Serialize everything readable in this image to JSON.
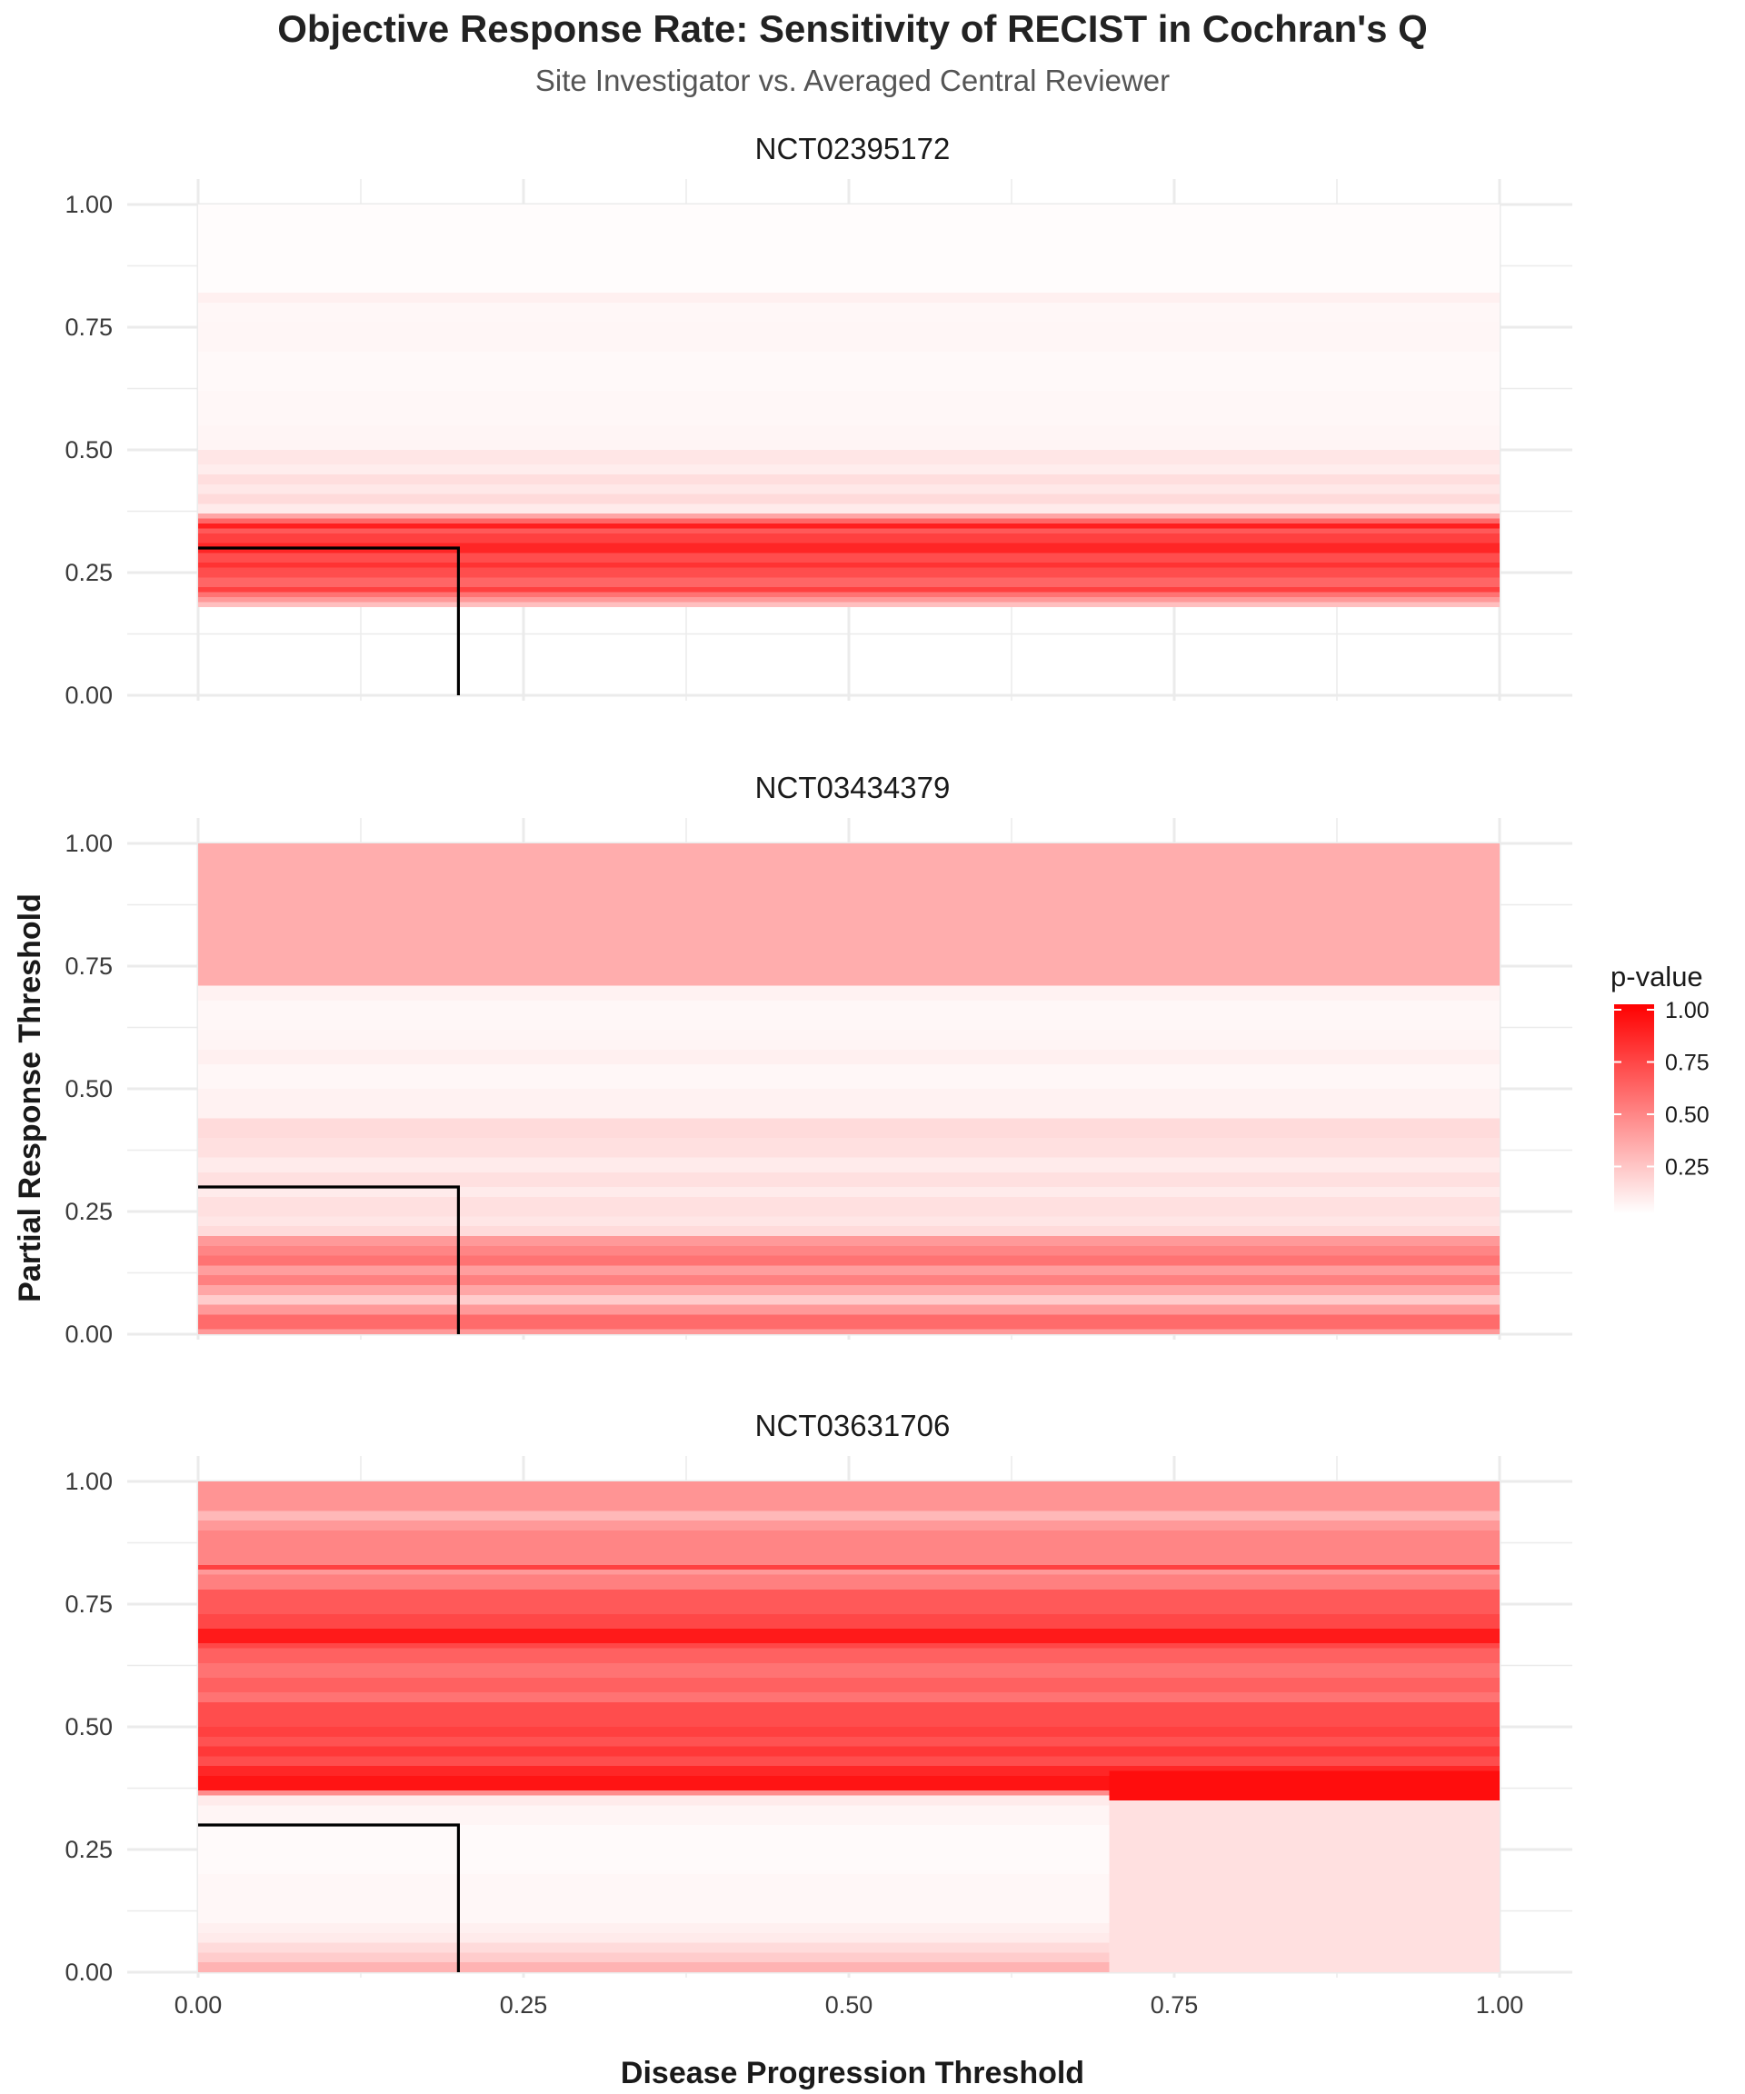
{
  "chart_data": {
    "type": "heatmap",
    "title": "Objective Response Rate: Sensitivity of RECIST in Cochran's Q",
    "subtitle": "Site Investigator vs. Averaged Central Reviewer",
    "xlabel": "Disease Progression Threshold",
    "ylabel": "Partial Response Threshold",
    "xlim": [
      0,
      1
    ],
    "ylim": [
      0,
      1
    ],
    "x_ticks": [
      "0.00",
      "0.25",
      "0.50",
      "0.75",
      "1.00"
    ],
    "y_ticks": [
      "0.00",
      "0.25",
      "0.50",
      "0.75",
      "1.00"
    ],
    "grid": true,
    "colorscale": {
      "low": "#ffffff",
      "high": "#ff0000"
    },
    "legend": {
      "title": "p-value",
      "position": "right",
      "ticks": [
        "1.00",
        "0.75",
        "0.50",
        "0.25"
      ],
      "tick_values": [
        1.0,
        0.75,
        0.5,
        0.25
      ],
      "range": [
        0.0,
        1.0
      ]
    },
    "reference_line": {
      "x": 0.2,
      "y": 0.3,
      "color": "#000000"
    },
    "panels": [
      {
        "name": "NCT02395172",
        "bands": [
          {
            "y0": 0.0,
            "y1": 0.18,
            "p": 0.0
          },
          {
            "y0": 0.18,
            "y1": 0.19,
            "p": 0.25
          },
          {
            "y0": 0.19,
            "y1": 0.2,
            "p": 0.4
          },
          {
            "y0": 0.2,
            "y1": 0.21,
            "p": 0.55
          },
          {
            "y0": 0.21,
            "y1": 0.22,
            "p": 0.75
          },
          {
            "y0": 0.22,
            "y1": 0.24,
            "p": 0.6
          },
          {
            "y0": 0.24,
            "y1": 0.26,
            "p": 0.7
          },
          {
            "y0": 0.26,
            "y1": 0.27,
            "p": 0.8
          },
          {
            "y0": 0.27,
            "y1": 0.29,
            "p": 0.7
          },
          {
            "y0": 0.29,
            "y1": 0.31,
            "p": 0.85
          },
          {
            "y0": 0.31,
            "y1": 0.33,
            "p": 0.75
          },
          {
            "y0": 0.33,
            "y1": 0.34,
            "p": 0.65
          },
          {
            "y0": 0.34,
            "y1": 0.35,
            "p": 0.88
          },
          {
            "y0": 0.35,
            "y1": 0.36,
            "p": 0.6
          },
          {
            "y0": 0.36,
            "y1": 0.37,
            "p": 0.35
          },
          {
            "y0": 0.37,
            "y1": 0.39,
            "p": 0.08
          },
          {
            "y0": 0.39,
            "y1": 0.41,
            "p": 0.14
          },
          {
            "y0": 0.41,
            "y1": 0.43,
            "p": 0.09
          },
          {
            "y0": 0.43,
            "y1": 0.45,
            "p": 0.13
          },
          {
            "y0": 0.45,
            "y1": 0.47,
            "p": 0.07
          },
          {
            "y0": 0.47,
            "y1": 0.5,
            "p": 0.1
          },
          {
            "y0": 0.5,
            "y1": 0.55,
            "p": 0.04
          },
          {
            "y0": 0.55,
            "y1": 0.62,
            "p": 0.03
          },
          {
            "y0": 0.62,
            "y1": 0.7,
            "p": 0.025
          },
          {
            "y0": 0.7,
            "y1": 0.76,
            "p": 0.035
          },
          {
            "y0": 0.76,
            "y1": 0.8,
            "p": 0.03
          },
          {
            "y0": 0.8,
            "y1": 0.82,
            "p": 0.06
          },
          {
            "y0": 0.82,
            "y1": 1.0,
            "p": 0.01
          }
        ],
        "blocks": []
      },
      {
        "name": "NCT03434379",
        "bands": [
          {
            "y0": 0.0,
            "y1": 0.01,
            "p": 0.4
          },
          {
            "y0": 0.01,
            "y1": 0.04,
            "p": 0.58
          },
          {
            "y0": 0.04,
            "y1": 0.06,
            "p": 0.4
          },
          {
            "y0": 0.06,
            "y1": 0.08,
            "p": 0.2
          },
          {
            "y0": 0.08,
            "y1": 0.1,
            "p": 0.35
          },
          {
            "y0": 0.1,
            "y1": 0.12,
            "p": 0.5
          },
          {
            "y0": 0.12,
            "y1": 0.14,
            "p": 0.38
          },
          {
            "y0": 0.14,
            "y1": 0.16,
            "p": 0.55
          },
          {
            "y0": 0.16,
            "y1": 0.18,
            "p": 0.48
          },
          {
            "y0": 0.18,
            "y1": 0.2,
            "p": 0.4
          },
          {
            "y0": 0.2,
            "y1": 0.22,
            "p": 0.14
          },
          {
            "y0": 0.22,
            "y1": 0.24,
            "p": 0.1
          },
          {
            "y0": 0.24,
            "y1": 0.28,
            "p": 0.12
          },
          {
            "y0": 0.28,
            "y1": 0.3,
            "p": 0.08
          },
          {
            "y0": 0.3,
            "y1": 0.33,
            "p": 0.12
          },
          {
            "y0": 0.33,
            "y1": 0.36,
            "p": 0.08
          },
          {
            "y0": 0.36,
            "y1": 0.4,
            "p": 0.12
          },
          {
            "y0": 0.4,
            "y1": 0.44,
            "p": 0.14
          },
          {
            "y0": 0.44,
            "y1": 0.5,
            "p": 0.05
          },
          {
            "y0": 0.5,
            "y1": 0.55,
            "p": 0.03
          },
          {
            "y0": 0.55,
            "y1": 0.58,
            "p": 0.06
          },
          {
            "y0": 0.58,
            "y1": 0.62,
            "p": 0.04
          },
          {
            "y0": 0.62,
            "y1": 0.68,
            "p": 0.03
          },
          {
            "y0": 0.68,
            "y1": 0.71,
            "p": 0.05
          },
          {
            "y0": 0.71,
            "y1": 1.0,
            "p": 0.32
          }
        ],
        "blocks": []
      },
      {
        "name": "NCT03631706",
        "bands": [
          {
            "y0": 0.0,
            "y1": 0.02,
            "p": 0.3
          },
          {
            "y0": 0.02,
            "y1": 0.04,
            "p": 0.2
          },
          {
            "y0": 0.04,
            "y1": 0.06,
            "p": 0.14
          },
          {
            "y0": 0.06,
            "y1": 0.08,
            "p": 0.08
          },
          {
            "y0": 0.08,
            "y1": 0.1,
            "p": 0.06
          },
          {
            "y0": 0.1,
            "y1": 0.2,
            "p": 0.03
          },
          {
            "y0": 0.2,
            "y1": 0.3,
            "p": 0.02
          },
          {
            "y0": 0.3,
            "y1": 0.34,
            "p": 0.04
          },
          {
            "y0": 0.34,
            "y1": 0.36,
            "p": 0.08
          },
          {
            "y0": 0.36,
            "y1": 0.37,
            "p": 0.45
          },
          {
            "y0": 0.37,
            "y1": 0.4,
            "p": 0.92
          },
          {
            "y0": 0.4,
            "y1": 0.42,
            "p": 0.85
          },
          {
            "y0": 0.42,
            "y1": 0.44,
            "p": 0.7
          },
          {
            "y0": 0.44,
            "y1": 0.46,
            "p": 0.78
          },
          {
            "y0": 0.46,
            "y1": 0.48,
            "p": 0.68
          },
          {
            "y0": 0.48,
            "y1": 0.5,
            "p": 0.75
          },
          {
            "y0": 0.5,
            "y1": 0.55,
            "p": 0.7
          },
          {
            "y0": 0.55,
            "y1": 0.57,
            "p": 0.55
          },
          {
            "y0": 0.57,
            "y1": 0.6,
            "p": 0.62
          },
          {
            "y0": 0.6,
            "y1": 0.63,
            "p": 0.55
          },
          {
            "y0": 0.63,
            "y1": 0.66,
            "p": 0.62
          },
          {
            "y0": 0.66,
            "y1": 0.67,
            "p": 0.72
          },
          {
            "y0": 0.67,
            "y1": 0.7,
            "p": 0.9
          },
          {
            "y0": 0.7,
            "y1": 0.73,
            "p": 0.72
          },
          {
            "y0": 0.73,
            "y1": 0.78,
            "p": 0.65
          },
          {
            "y0": 0.78,
            "y1": 0.81,
            "p": 0.5
          },
          {
            "y0": 0.81,
            "y1": 0.82,
            "p": 0.4
          },
          {
            "y0": 0.82,
            "y1": 0.83,
            "p": 0.75
          },
          {
            "y0": 0.83,
            "y1": 0.9,
            "p": 0.48
          },
          {
            "y0": 0.9,
            "y1": 0.92,
            "p": 0.4
          },
          {
            "y0": 0.92,
            "y1": 0.94,
            "p": 0.28
          },
          {
            "y0": 0.94,
            "y1": 1.0,
            "p": 0.42
          }
        ],
        "blocks": [
          {
            "x0": 0.7,
            "x1": 1.0,
            "y0": 0.0,
            "y1": 0.35,
            "p": 0.12
          },
          {
            "x0": 0.7,
            "x1": 1.0,
            "y0": 0.35,
            "y1": 0.41,
            "p": 0.95
          }
        ]
      }
    ]
  }
}
